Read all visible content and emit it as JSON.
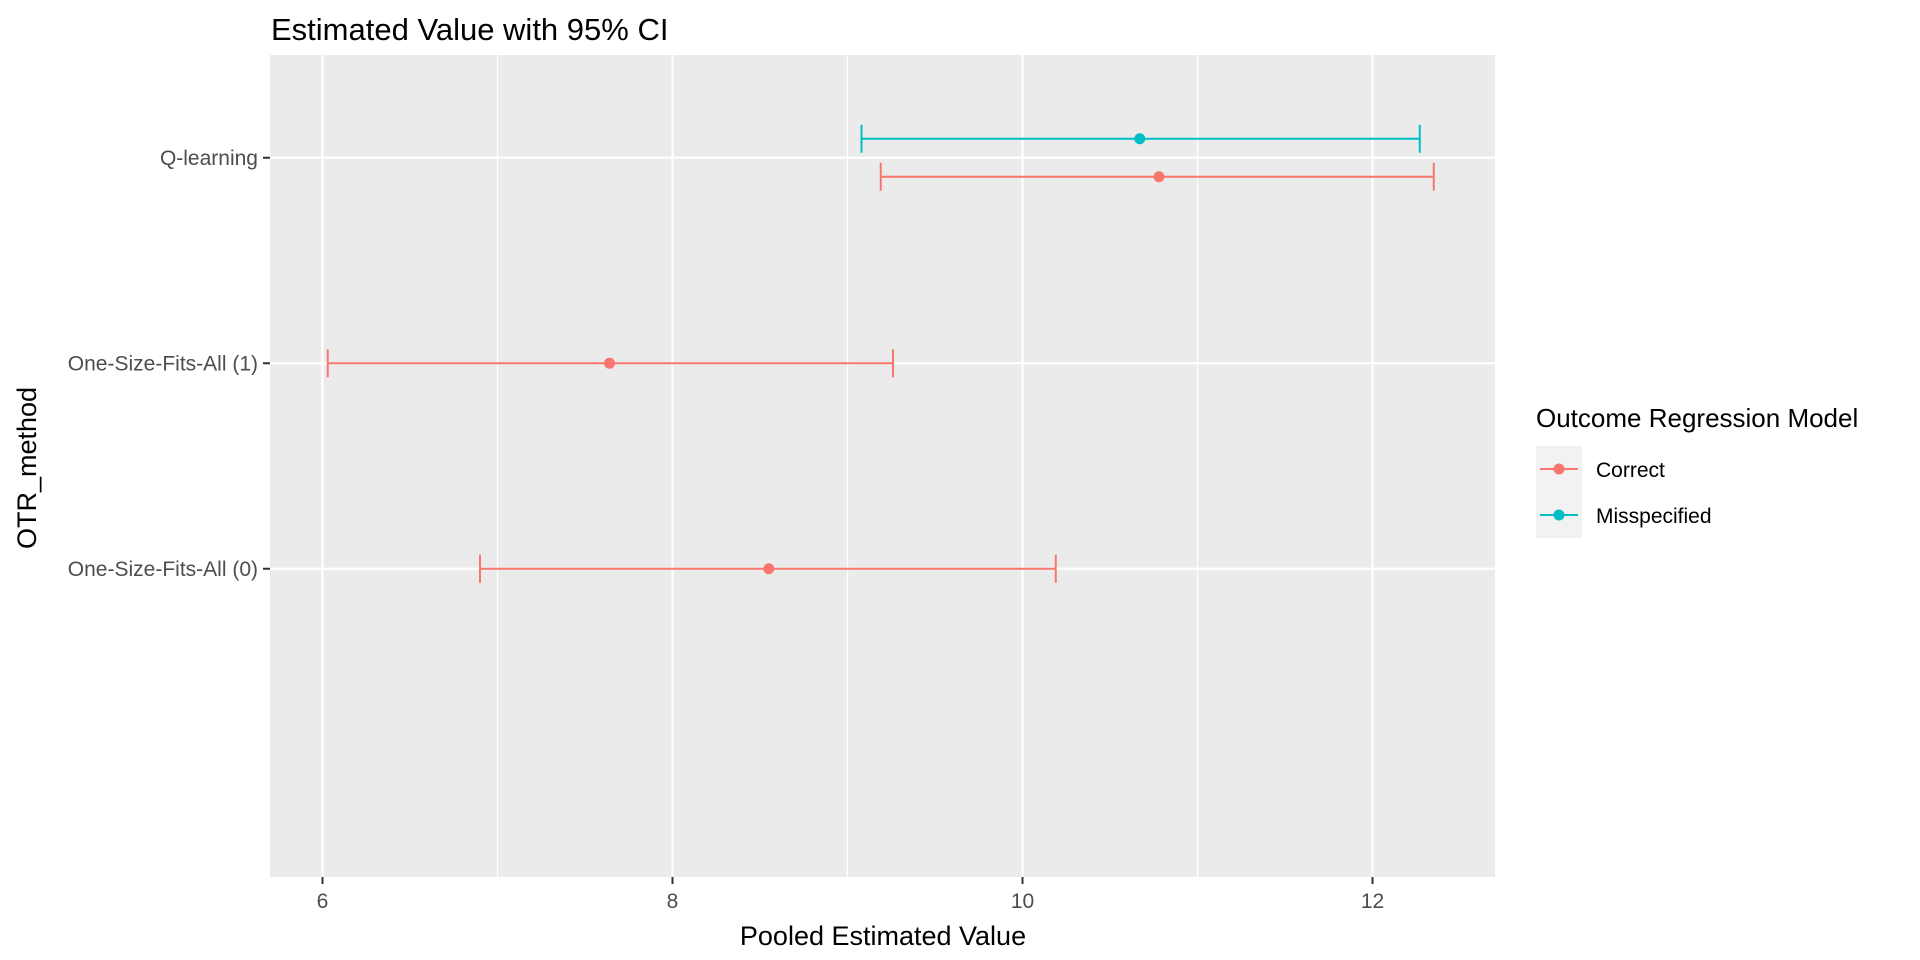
{
  "chart_data": {
    "type": "errorbar",
    "title": "Estimated Value with 95% CI",
    "xlabel": "Pooled Estimated Value",
    "ylabel": "OTR_method",
    "xlim": [
      5.7,
      12.7
    ],
    "xticks": [
      "6",
      "8",
      "10",
      "12"
    ],
    "categories": [
      "Q-learning",
      "One-Size-Fits-All (1)",
      "One-Size-Fits-All (0)"
    ],
    "legend": {
      "title": "Outcome Regression Model",
      "position": "right"
    },
    "grid": true,
    "series": [
      {
        "name": "Correct",
        "color": "#F8766D",
        "points": [
          {
            "category": "Q-learning",
            "estimate": 10.78,
            "lower": 9.19,
            "upper": 12.35
          },
          {
            "category": "One-Size-Fits-All (1)",
            "estimate": 7.64,
            "lower": 6.03,
            "upper": 9.26
          },
          {
            "category": "One-Size-Fits-All (0)",
            "estimate": 8.55,
            "lower": 6.9,
            "upper": 10.19
          }
        ]
      },
      {
        "name": "Misspecified",
        "color": "#00BFC4",
        "points": [
          {
            "category": "Q-learning",
            "estimate": 10.67,
            "lower": 9.08,
            "upper": 12.27
          }
        ]
      }
    ]
  }
}
